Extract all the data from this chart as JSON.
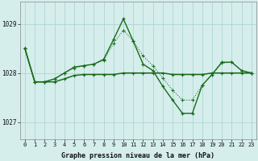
{
  "hours": [
    0,
    1,
    2,
    3,
    4,
    5,
    6,
    7,
    8,
    9,
    10,
    11,
    12,
    13,
    14,
    15,
    16,
    17,
    18,
    19,
    20,
    21,
    22,
    23
  ],
  "line_flat": [
    1028.5,
    1027.82,
    1027.82,
    1027.82,
    1027.88,
    1027.95,
    1027.97,
    1027.97,
    1027.97,
    1027.97,
    1028.0,
    1028.0,
    1028.0,
    1028.0,
    1028.0,
    1027.97,
    1027.97,
    1027.97,
    1027.97,
    1028.0,
    1028.0,
    1028.0,
    1028.0,
    1028.0
  ],
  "line_dotted": [
    1028.5,
    1027.82,
    1027.82,
    1027.88,
    1028.0,
    1028.1,
    1028.15,
    1028.18,
    1028.25,
    1028.6,
    1028.87,
    1028.65,
    1028.35,
    1028.15,
    1027.9,
    1027.65,
    1027.45,
    1027.45,
    1027.75,
    1027.97,
    1028.2,
    1028.22,
    1028.05,
    1028.0
  ],
  "line_main": [
    1028.5,
    1027.82,
    1027.82,
    1027.88,
    1028.0,
    1028.12,
    1028.15,
    1028.18,
    1028.28,
    1028.68,
    1029.1,
    1028.65,
    1028.18,
    1028.05,
    1027.73,
    1027.45,
    1027.18,
    1027.18,
    1027.75,
    1027.97,
    1028.22,
    1028.22,
    1028.05,
    1028.0
  ],
  "bg_color": "#d5eeec",
  "grid_color": "#aed4d2",
  "line_color": "#1a6b1a",
  "yticks": [
    1027,
    1028,
    1029
  ],
  "ylim": [
    1026.65,
    1029.45
  ],
  "xlabel": "Graphe pression niveau de la mer (hPa)"
}
